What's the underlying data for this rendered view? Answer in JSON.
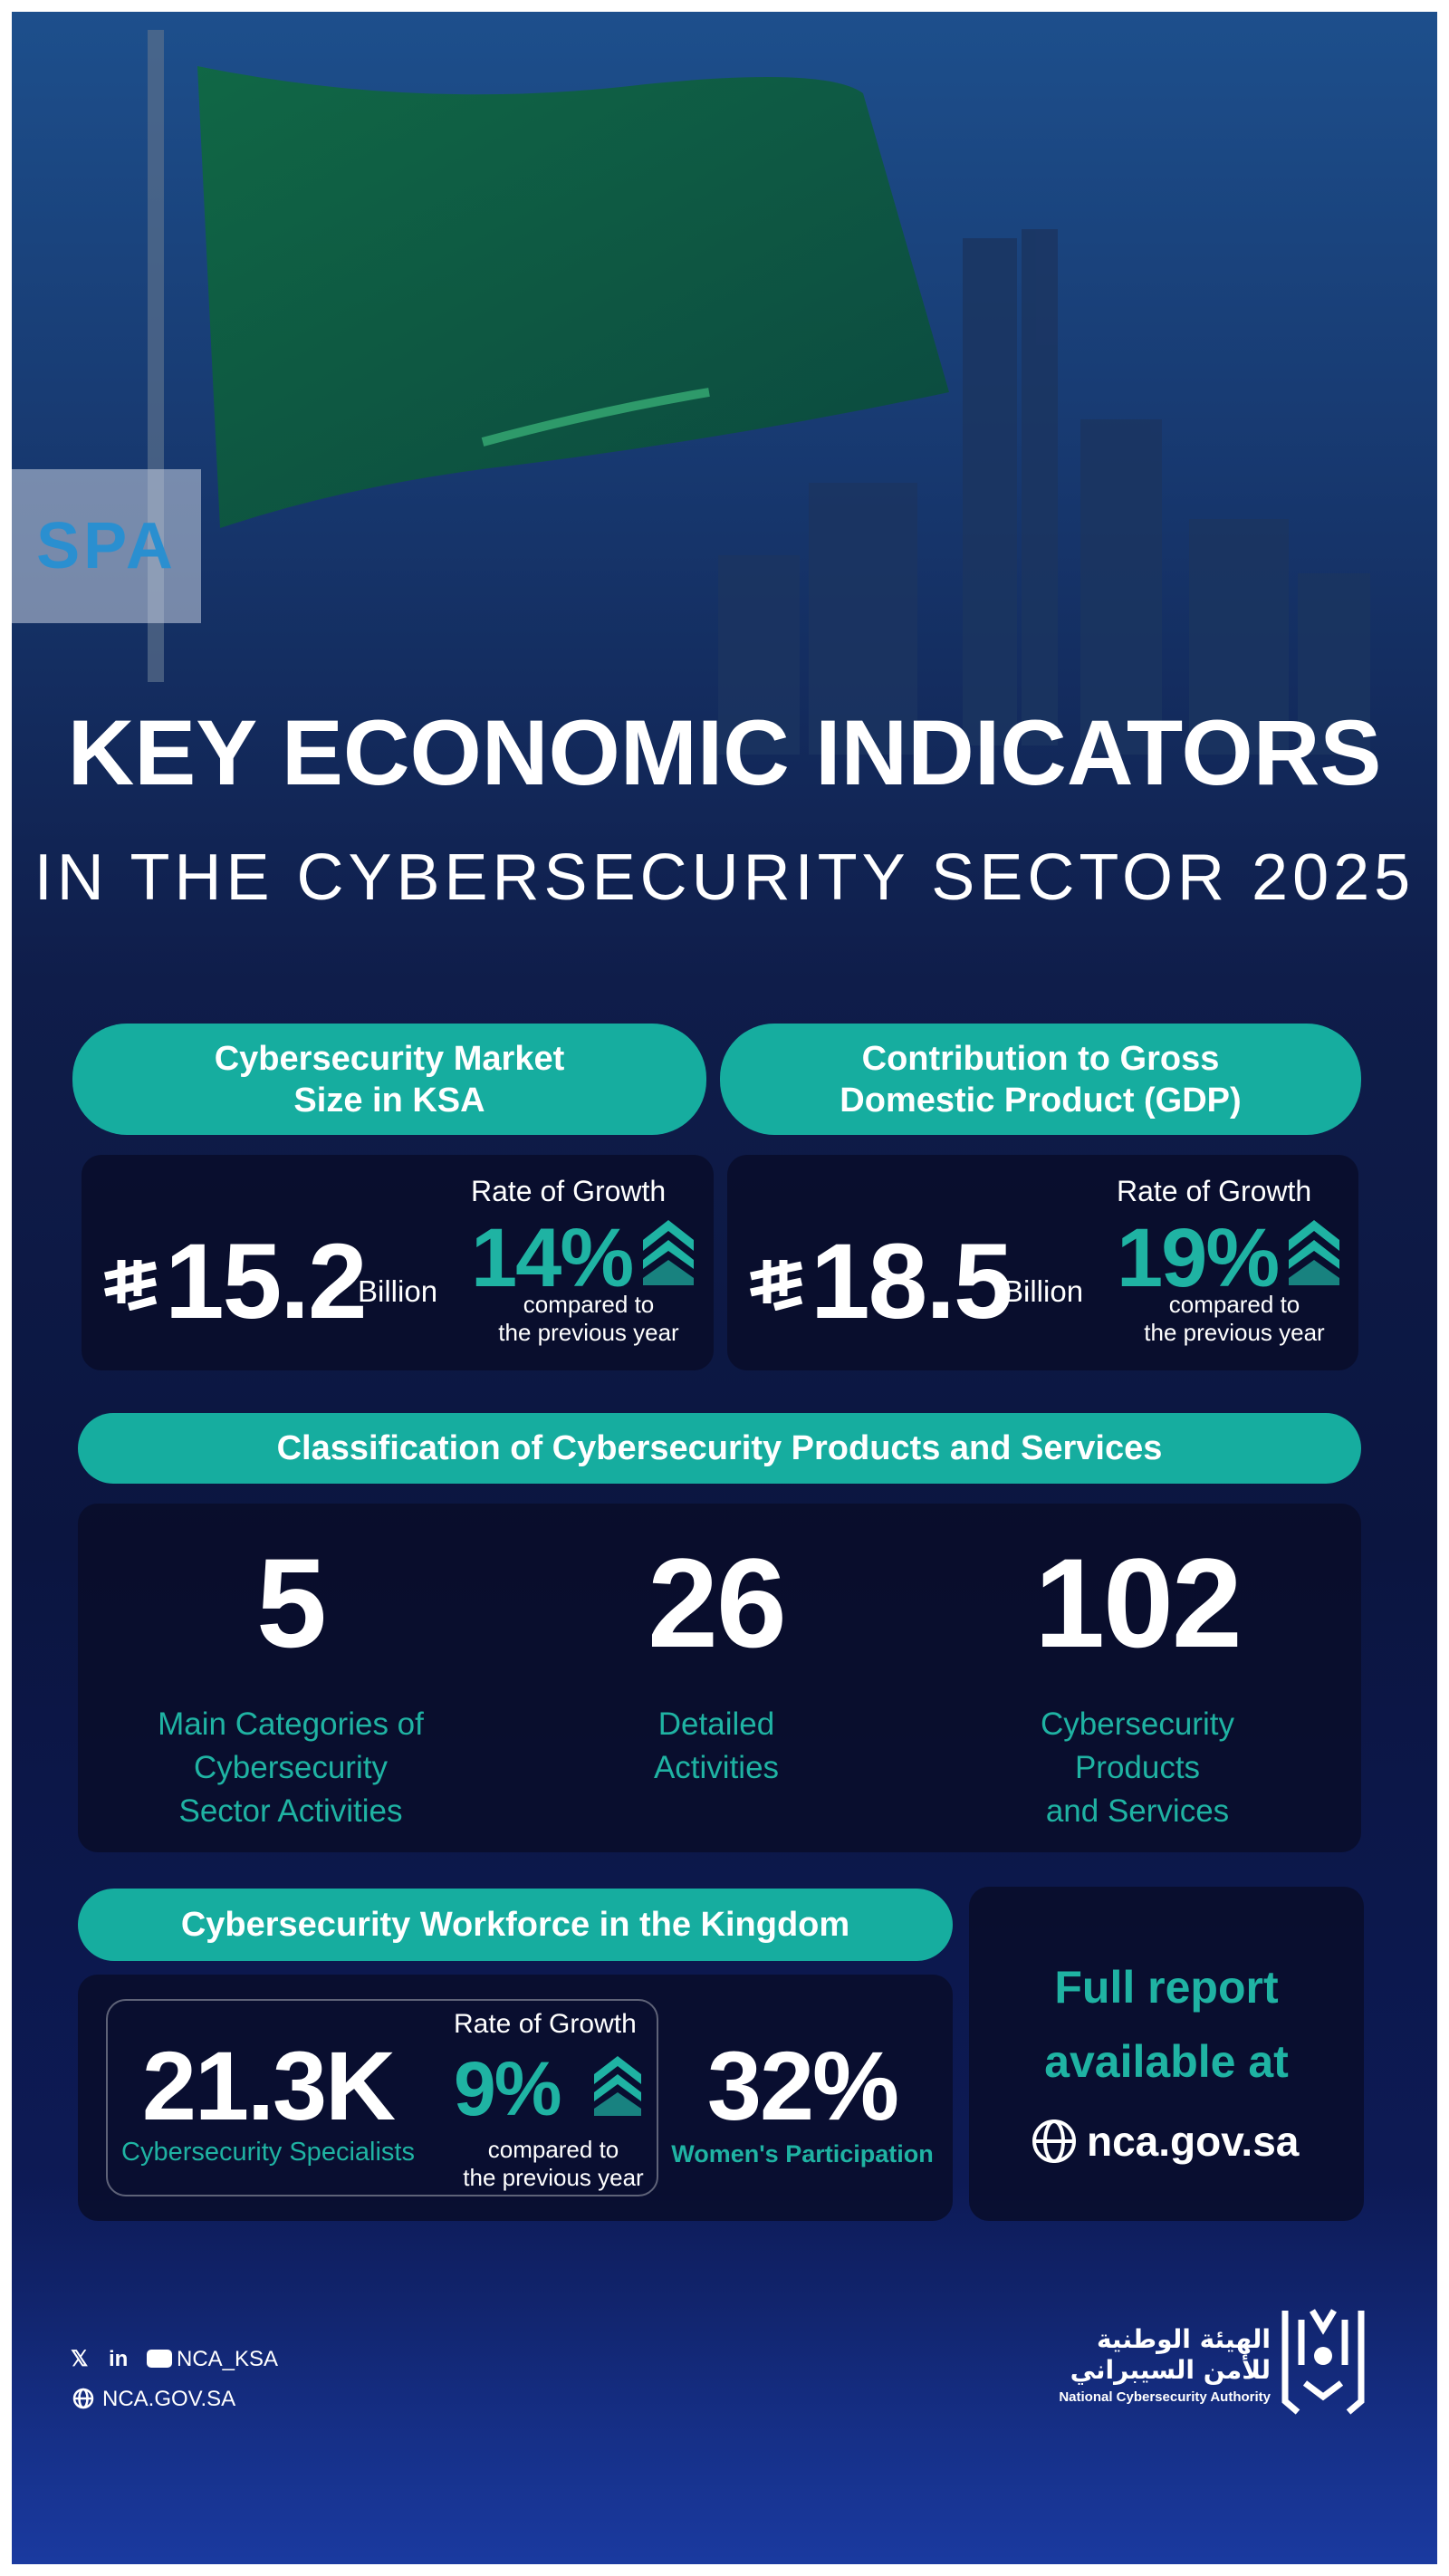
{
  "logo": {
    "text": "SPA"
  },
  "header": {
    "title": "KEY ECONOMIC INDICATORS",
    "subtitle": "IN THE CYBERSECURITY SECTOR 2025"
  },
  "market": {
    "heading": [
      "Cybersecurity Market",
      "Size in KSA"
    ],
    "value": "15.2",
    "unit": "Billion",
    "growth_label": "Rate of Growth",
    "growth": "14%",
    "growth_note": [
      "compared to",
      "the previous year"
    ]
  },
  "gdp": {
    "heading": [
      "Contribution to Gross",
      "Domestic Product (GDP)"
    ],
    "value": "18.5",
    "unit": "Billion",
    "growth_label": "Rate of Growth",
    "growth": "19%",
    "growth_note": [
      "compared to",
      "the previous year"
    ]
  },
  "classification": {
    "heading": "Classification of Cybersecurity Products and Services",
    "items": [
      {
        "value": "5",
        "label": [
          "Main Categories of",
          "Cybersecurity",
          "Sector Activities"
        ]
      },
      {
        "value": "26",
        "label": [
          "Detailed",
          "Activities"
        ]
      },
      {
        "value": "102",
        "label": [
          "Cybersecurity",
          "Products",
          "and Services"
        ]
      }
    ]
  },
  "workforce": {
    "heading": "Cybersecurity Workforce in the Kingdom",
    "specialists": {
      "value": "21.3K",
      "label": "Cybersecurity Specialists"
    },
    "growth_label": "Rate of Growth",
    "growth": "9%",
    "growth_note": [
      "compared to",
      "the previous year"
    ],
    "women": {
      "value": "32%",
      "label": "Women's Participation"
    }
  },
  "report": {
    "text": [
      "Full report",
      "available at"
    ],
    "link": "nca.gov.sa"
  },
  "footer": {
    "social": "NCA_KSA",
    "website": "NCA.GOV.SA",
    "org_ar": [
      "الهيئة الوطنية",
      "للأمن السيبراني"
    ],
    "org_en": "National Cybersecurity Authority"
  }
}
